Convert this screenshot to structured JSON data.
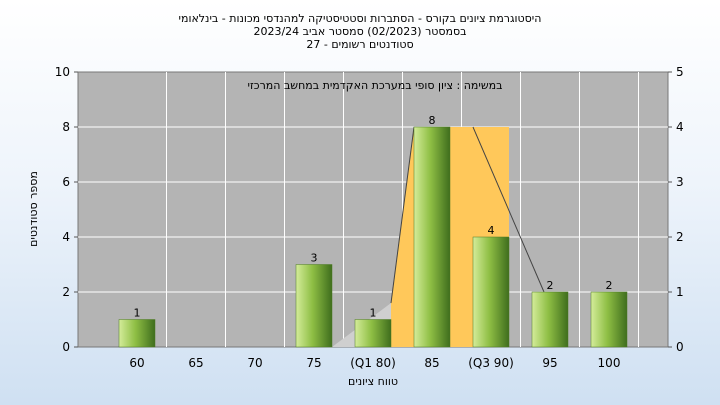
{
  "chart_data": {
    "type": "bar",
    "title_lines": [
      "היסטוגרמת ציונים בקורס - הסתברות וסטטיסטיקה למהנדסי מכונות - בינלאומי",
      "בסמסטר  (02/2023)  סמסטר אביב 2023/24",
      "סטודנטים רשומים - 27"
    ],
    "note": "במשימה : ציון סופי במערכת האקדמית במחשב המרכזי",
    "xlabel": "טווח ציונים",
    "ylabel": "מספר סטודנטים",
    "categories": [
      "60",
      "65",
      "70",
      "75",
      "(Q1 80)",
      "85",
      "(Q3 90)",
      "95",
      "100"
    ],
    "values": [
      1,
      0,
      0,
      3,
      1,
      8,
      4,
      2,
      2
    ],
    "value_labels": [
      "1",
      "",
      "",
      "3",
      "1",
      "8",
      "4",
      "2",
      "2"
    ],
    "ylim": [
      0,
      10
    ],
    "yticks": [
      "0",
      "2",
      "4",
      "6",
      "8",
      "10"
    ],
    "y2lim": [
      0,
      5
    ],
    "y2ticks": [
      "0",
      "1",
      "2",
      "3",
      "4",
      "5"
    ],
    "quartile_box": {
      "q1": "(Q1 80)",
      "median": "85",
      "q3": "(Q3 90)",
      "min": "75",
      "max": "95"
    },
    "grid": true,
    "colors": {
      "plot_bg": "#b4b4b4",
      "bar_light": "#d4ec9a",
      "bar_mid": "#8fbf45",
      "bar_dark": "#3f6e1d",
      "iqr_fill": "#ffc85a",
      "whisker_fill": "#cfcfcf"
    }
  }
}
